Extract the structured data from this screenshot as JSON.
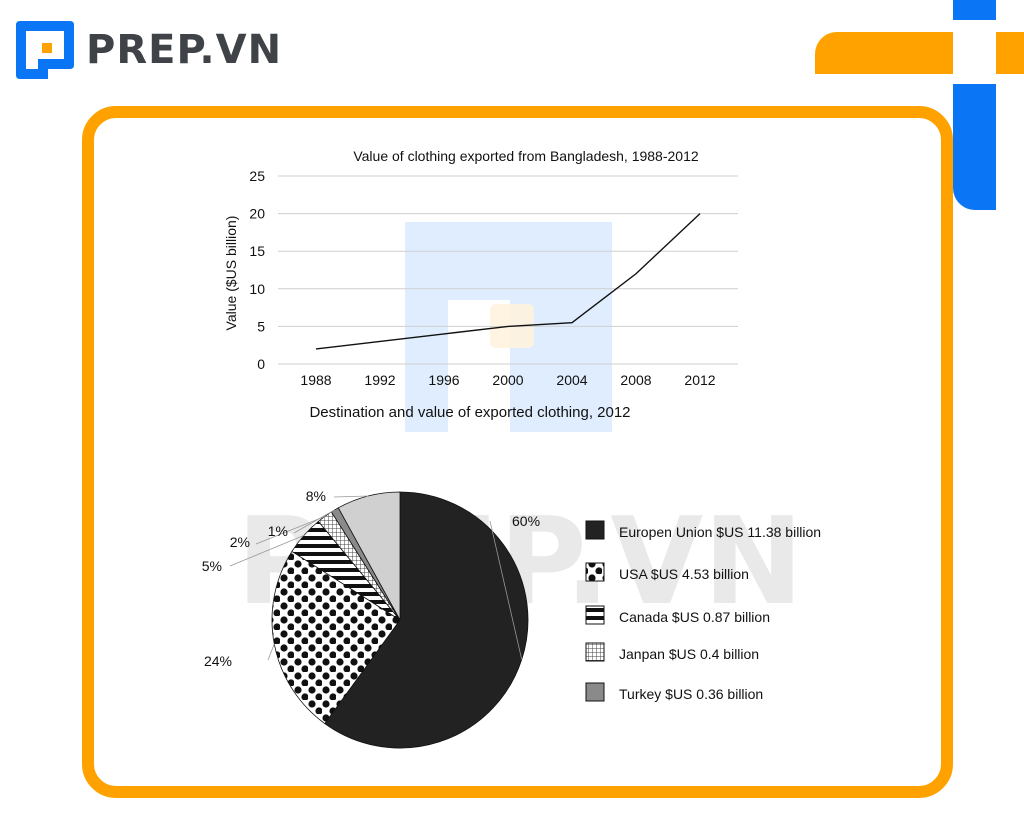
{
  "brand": {
    "name": "PREP.VN",
    "colors": {
      "orange": "#ffa200",
      "blue": "#0a75f5"
    }
  },
  "watermark": "PREP.VN",
  "chart_data": [
    {
      "type": "line",
      "title": "Value of clothing exported from Bangladesh, 1988-2012",
      "xlabel": "",
      "ylabel": "Value ($US billion)",
      "x": [
        "1988",
        "1992",
        "1996",
        "2000",
        "2004",
        "2008",
        "2012"
      ],
      "series": [
        {
          "values": [
            2,
            3,
            4,
            5,
            5.5,
            12,
            20
          ]
        }
      ],
      "yticks": [
        "0",
        "5",
        "10",
        "15",
        "20",
        "25"
      ],
      "ylim": [
        0,
        25
      ],
      "grid": true
    },
    {
      "type": "pie",
      "title": "Destination and value of exported clothing, 2012",
      "slices": [
        {
          "label": "Europen Union $US 11.38 billion",
          "percent_label": "60%",
          "value": 60,
          "pattern": "solid-black"
        },
        {
          "label": "USA $US 4.53 billion",
          "percent_label": "24%",
          "value": 24,
          "pattern": "dots"
        },
        {
          "label": "Canada $US 0.87 billion",
          "percent_label": "5%",
          "value": 5,
          "pattern": "horizontal-stripes"
        },
        {
          "label": "Janpan $US 0.4 billion",
          "percent_label": "2%",
          "value": 2,
          "pattern": "grid"
        },
        {
          "label": "Turkey $US 0.36 billion",
          "percent_label": "1%",
          "value": 1,
          "pattern": "gray"
        },
        {
          "label": "",
          "percent_label": "8%",
          "value": 8,
          "pattern": "light-gray"
        }
      ],
      "legend_position": "right"
    }
  ]
}
